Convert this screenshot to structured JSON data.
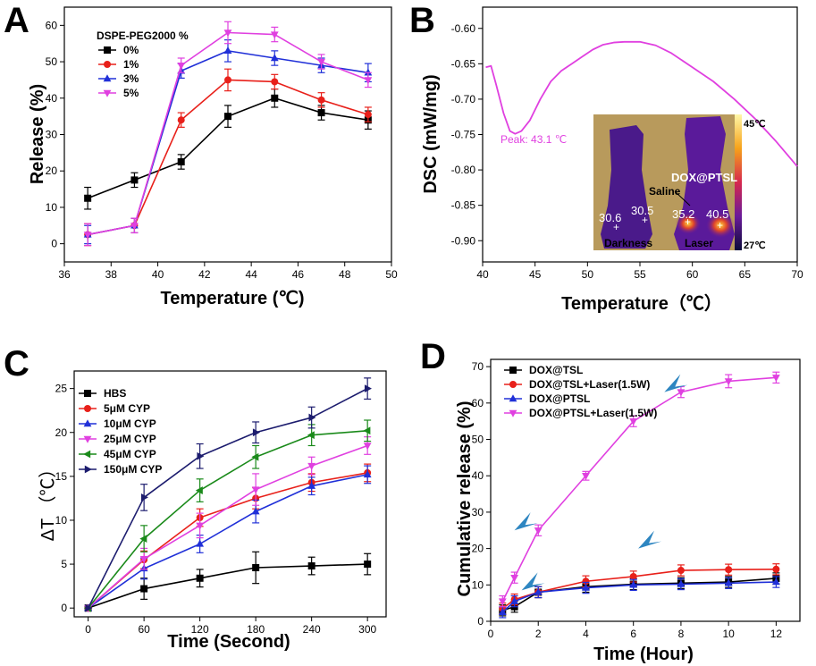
{
  "panels": [
    {
      "id": "A",
      "letter": "A",
      "type": "line",
      "xlabel": "Temperature (℃)",
      "ylabel": "Release (%)",
      "xlim": [
        36,
        50
      ],
      "ylim": [
        -5,
        65
      ],
      "xticks": [
        36,
        38,
        40,
        42,
        44,
        46,
        48,
        50
      ],
      "yticks": [
        0,
        10,
        20,
        30,
        40,
        50,
        60
      ],
      "legend_title": "DSPE-PEG2000 %",
      "x": [
        37,
        39,
        41,
        43,
        45,
        47,
        49
      ],
      "series": [
        {
          "name": "0%",
          "color": "#000000",
          "marker": "square",
          "values": [
            12.5,
            17.5,
            22.5,
            35,
            40,
            36,
            34
          ],
          "err": [
            3,
            2,
            2,
            3,
            2.5,
            2,
            2.5
          ]
        },
        {
          "name": "1%",
          "color": "#e8201a",
          "marker": "circle",
          "values": [
            2.5,
            5,
            34,
            45,
            44.5,
            39.5,
            35.5
          ],
          "err": [
            3,
            2,
            2,
            3,
            2,
            2,
            2
          ]
        },
        {
          "name": "3%",
          "color": "#2030d8",
          "marker": "triangle-up",
          "values": [
            2.5,
            5,
            47.5,
            53,
            51,
            49,
            47
          ],
          "err": [
            2.5,
            2,
            2,
            3,
            2,
            2,
            2.5
          ]
        },
        {
          "name": "5%",
          "color": "#e040e0",
          "marker": "triangle-down",
          "values": [
            2.5,
            5,
            49,
            58,
            57.5,
            50,
            45
          ],
          "err": [
            3,
            2,
            2,
            3,
            2,
            2,
            2
          ]
        }
      ]
    },
    {
      "id": "B",
      "letter": "B",
      "type": "line",
      "xlabel": "Temperature（℃）",
      "ylabel": "DSC (mW/mg)",
      "xlim": [
        40,
        70
      ],
      "ylim": [
        -0.93,
        -0.57
      ],
      "xticks": [
        40,
        45,
        50,
        55,
        60,
        65,
        70
      ],
      "yticks": [
        -0.9,
        -0.85,
        -0.8,
        -0.75,
        -0.7,
        -0.65,
        -0.6
      ],
      "ytick_labels": [
        "-0.90",
        "-0.85",
        "-0.80",
        "-0.75",
        "-0.70",
        "-0.65",
        "-0.60"
      ],
      "annotation": "Peak: 43.1 ℃",
      "series": [
        {
          "name": "",
          "color": "#e040e0",
          "x": [
            40.3,
            40.8,
            41.3,
            42,
            42.6,
            43.1,
            43.7,
            44.5,
            45.5,
            46.5,
            47.5,
            48.5,
            49.5,
            50.5,
            51.5,
            52.5,
            53.5,
            55,
            56.5,
            58,
            60,
            62,
            64,
            66,
            68,
            70
          ],
          "values": [
            -0.655,
            -0.653,
            -0.68,
            -0.72,
            -0.745,
            -0.749,
            -0.745,
            -0.73,
            -0.7,
            -0.675,
            -0.66,
            -0.65,
            -0.64,
            -0.63,
            -0.623,
            -0.62,
            -0.619,
            -0.619,
            -0.624,
            -0.635,
            -0.655,
            -0.675,
            -0.7,
            -0.728,
            -0.76,
            -0.795
          ]
        }
      ],
      "thermal_inset": {
        "scale_max": "45℃",
        "scale_min": "27℃",
        "left_label": "Darkness",
        "right_label": "Laser",
        "sample_label_top": "DOX@PTSL",
        "sample_label_mid": "Saline",
        "readings": [
          "30.6",
          "30.5",
          "35.2",
          "40.5"
        ]
      }
    },
    {
      "id": "C",
      "letter": "C",
      "type": "line",
      "xlabel": "Time (Second)",
      "ylabel": "ΔT （℃）",
      "xlim": [
        -15,
        320
      ],
      "ylim": [
        -1,
        27
      ],
      "xticks": [
        0,
        60,
        120,
        180,
        240,
        300
      ],
      "yticks": [
        0,
        5,
        10,
        15,
        20,
        25
      ],
      "x": [
        0,
        60,
        120,
        180,
        240,
        300
      ],
      "series": [
        {
          "name": "HBS",
          "color": "#000000",
          "marker": "square",
          "values": [
            0,
            2.2,
            3.4,
            4.6,
            4.8,
            5.0
          ],
          "err": [
            0,
            1.2,
            1.0,
            1.8,
            1.0,
            1.2
          ]
        },
        {
          "name": "5μM CYP",
          "color": "#e8201a",
          "marker": "circle",
          "values": [
            0,
            5.5,
            10.3,
            12.5,
            14.3,
            15.4
          ],
          "err": [
            0,
            1.0,
            1.0,
            1.2,
            1.0,
            1.0
          ]
        },
        {
          "name": "10μM CYP",
          "color": "#2030d8",
          "marker": "triangle-up",
          "values": [
            0,
            4.5,
            7.3,
            11.0,
            13.9,
            15.2
          ],
          "err": [
            0,
            1.2,
            1.0,
            1.3,
            1.0,
            1.0
          ]
        },
        {
          "name": "25μM CYP",
          "color": "#e040e0",
          "marker": "triangle-down",
          "values": [
            0,
            5.6,
            9.4,
            13.5,
            16.2,
            18.5
          ],
          "err": [
            0,
            1.2,
            1.4,
            1.8,
            1.0,
            1.0
          ]
        },
        {
          "name": "45μM CYP",
          "color": "#1a8a1a",
          "marker": "triangle-left",
          "values": [
            0,
            7.9,
            13.4,
            17.2,
            19.7,
            20.2
          ],
          "err": [
            0,
            1.5,
            1.3,
            1.3,
            1.2,
            1.2
          ]
        },
        {
          "name": "150μM CYP",
          "color": "#1c1c6e",
          "marker": "triangle-right",
          "values": [
            0,
            12.6,
            17.3,
            20.0,
            21.7,
            25.0
          ],
          "err": [
            0,
            1.5,
            1.4,
            1.2,
            1.2,
            1.2
          ]
        }
      ]
    },
    {
      "id": "D",
      "letter": "D",
      "type": "line",
      "xlabel": "Time (Hour)",
      "ylabel": "Cumulative release (%)",
      "xlim": [
        0,
        13
      ],
      "ylim": [
        0,
        72
      ],
      "xticks": [
        0,
        2,
        4,
        6,
        8,
        10,
        12
      ],
      "yticks": [
        0,
        10,
        20,
        30,
        40,
        50,
        60,
        70
      ],
      "x": [
        0.5,
        1,
        2,
        4,
        6,
        8,
        10,
        12
      ],
      "series": [
        {
          "name": "DOX@TSL",
          "color": "#000000",
          "marker": "square",
          "values": [
            3,
            4,
            8,
            9.5,
            10.2,
            10.5,
            10.8,
            11.8
          ],
          "err": [
            1.5,
            1.5,
            1.5,
            1.5,
            1.5,
            1.5,
            1.5,
            1.5
          ]
        },
        {
          "name": "DOX@TSL+Laser(1.5W)",
          "color": "#e8201a",
          "marker": "circle",
          "values": [
            3.5,
            6,
            8,
            11,
            12.3,
            14,
            14.2,
            14.3
          ],
          "err": [
            1.5,
            1.5,
            1.5,
            1.5,
            1.5,
            1.5,
            1.5,
            1.5
          ]
        },
        {
          "name": "DOX@PTSL",
          "color": "#2030d8",
          "marker": "triangle-up",
          "values": [
            2.5,
            5.5,
            8,
            9.2,
            10,
            10.2,
            10.5,
            10.8
          ],
          "err": [
            1.5,
            1.5,
            1.5,
            1.5,
            1.5,
            1.5,
            1.5,
            1.5
          ]
        },
        {
          "name": "DOX@PTSL+Laser(1.5W)",
          "color": "#e040e0",
          "marker": "triangle-down",
          "values": [
            5.5,
            12,
            25,
            40,
            55,
            63,
            66,
            67
          ],
          "err": [
            1.5,
            1.5,
            1.5,
            1.2,
            1.5,
            1.5,
            1.8,
            1.5
          ]
        }
      ],
      "arrow_color": "#2e86c1"
    }
  ]
}
